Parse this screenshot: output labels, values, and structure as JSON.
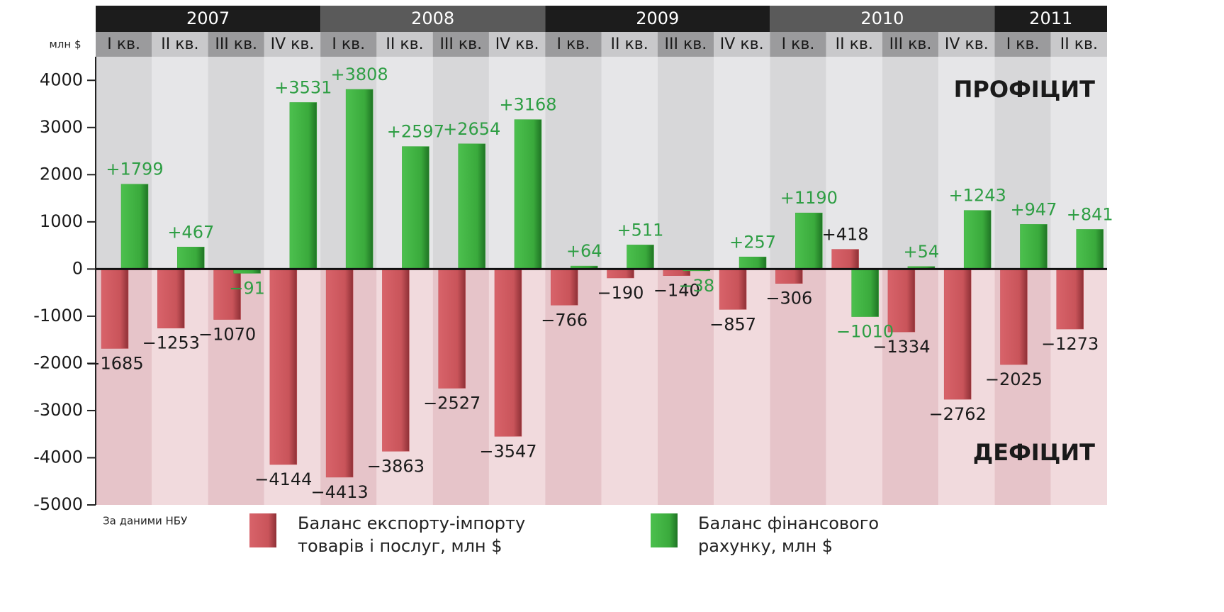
{
  "chart_data": {
    "type": "bar",
    "unit_label": "млн $",
    "years": [
      "2007",
      "2008",
      "2009",
      "2010",
      "2011"
    ],
    "categories": [
      "I кв.",
      "II кв.",
      "III кв.",
      "IV кв.",
      "I кв.",
      "II кв.",
      "III кв.",
      "IV кв.",
      "I кв.",
      "II кв.",
      "III кв.",
      "IV кв.",
      "I кв.",
      "II кв.",
      "III кв.",
      "IV кв.",
      "I кв.",
      "II кв."
    ],
    "series": [
      {
        "name": "Баланс експорту-імпорту товарів і послуг, млн $",
        "color": "#c9545a",
        "label_color": "#1a1a1a",
        "values": [
          -1685,
          -1253,
          -1070,
          -4144,
          -4413,
          -3863,
          -2527,
          -3547,
          -766,
          -190,
          -140,
          -857,
          -306,
          418,
          -1334,
          -2762,
          -2025,
          -1273
        ],
        "value_labels": [
          "−1685",
          "−1253",
          "−1070",
          "−4144",
          "−4413",
          "−3863",
          "−2527",
          "−3547",
          "−766",
          "−190",
          "−140",
          "−857",
          "−306",
          "+418",
          "−1334",
          "−2762",
          "−2025",
          "−1273"
        ]
      },
      {
        "name": "Баланс фінансового рахунку, млн $",
        "color": "#3aaa3c",
        "label_color": "#2e9e44",
        "values": [
          1799,
          467,
          -91,
          3531,
          3808,
          2597,
          2654,
          3168,
          64,
          511,
          -38,
          257,
          1190,
          -1010,
          54,
          1243,
          947,
          841
        ],
        "value_labels": [
          "+1799",
          "+467",
          "−91",
          "+3531",
          "+3808",
          "+2597",
          "+2654",
          "+3168",
          "+64",
          "+511",
          "−38",
          "+257",
          "+1190",
          "−1010",
          "+54",
          "+1243",
          "+947",
          "+841"
        ]
      }
    ],
    "ylim": [
      -5000,
      4500
    ],
    "yticks": [
      -5000,
      -4000,
      -3000,
      -2000,
      -1000,
      0,
      1000,
      2000,
      3000,
      4000
    ],
    "surplus_label": "ПРОФІЦИТ",
    "deficit_label": "ДЕФІЦИТ",
    "source": "За даними НБУ"
  }
}
